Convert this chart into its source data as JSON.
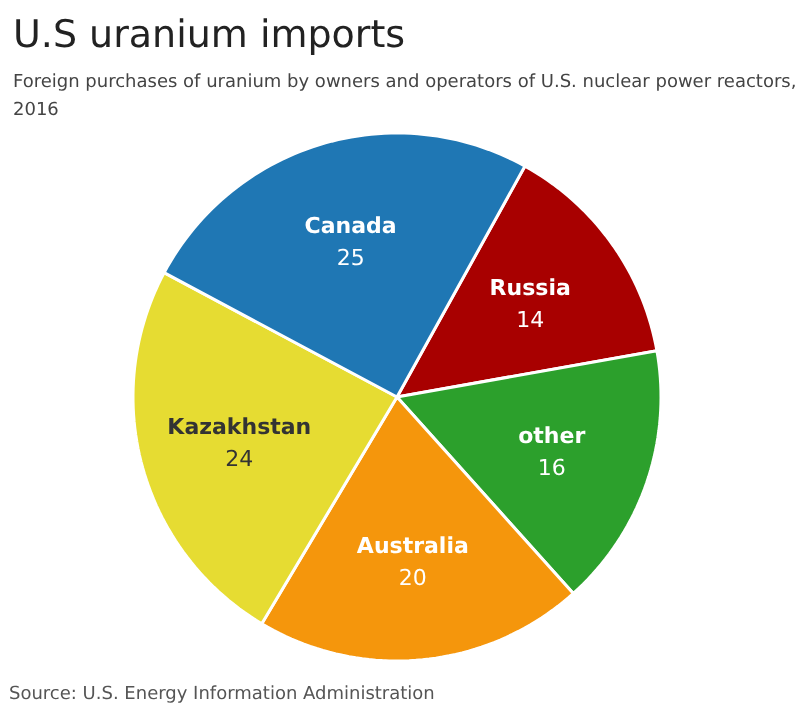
{
  "chart_data": {
    "type": "pie",
    "title": "U.S uranium imports",
    "subtitle": "Foreign purchases of uranium by owners and operators of U.S. nuclear power reactors, 2016",
    "categories": [
      "Russia",
      "other",
      "Australia",
      "Kazakhstan",
      "Canada"
    ],
    "values": [
      14,
      16,
      20,
      24,
      25
    ],
    "colors": [
      "#a80000",
      "#2ca02c",
      "#f5960c",
      "#e6dc32",
      "#1f77b4"
    ],
    "data_labels": true,
    "annotations": [
      "Source: U.S. Energy Information Administration"
    ]
  }
}
